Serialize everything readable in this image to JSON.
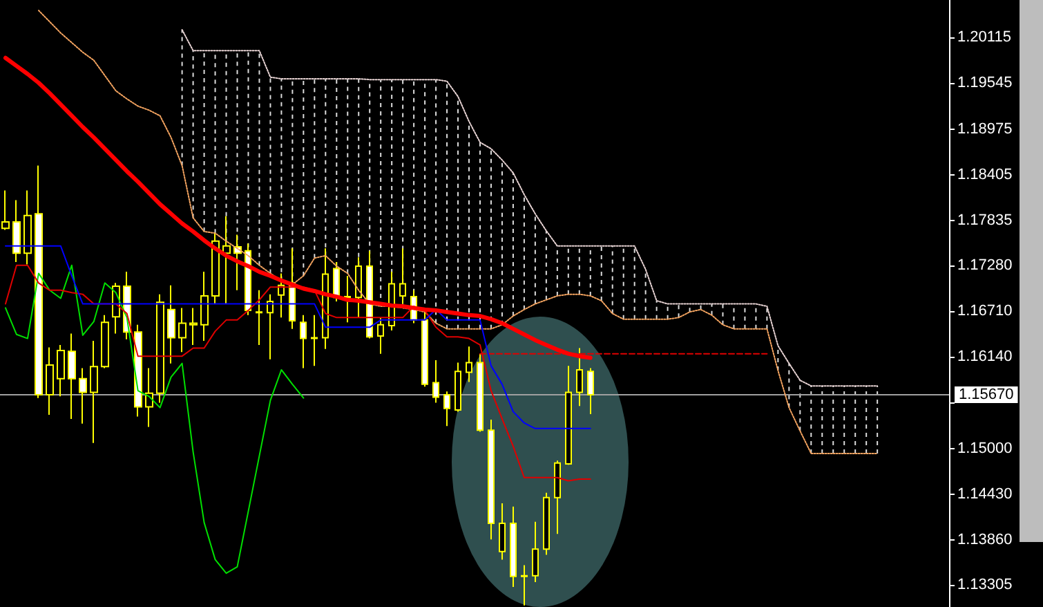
{
  "chart_data": {
    "type": "candlestick",
    "color": "#ffff00",
    "categories": [
      null,
      null,
      null,
      null,
      null,
      null,
      null,
      null,
      null,
      null,
      null,
      null,
      null,
      null,
      null,
      null,
      null,
      null,
      null,
      null,
      null,
      null,
      null,
      null,
      null,
      null,
      null,
      null,
      null,
      null,
      null,
      null,
      null,
      null,
      null,
      null,
      null,
      null,
      null,
      null,
      null,
      null,
      null,
      null,
      null,
      null,
      null,
      null,
      null,
      null,
      null,
      null,
      null,
      null,
      null,
      null,
      null,
      null,
      null,
      null,
      null,
      null,
      null,
      null,
      null,
      null,
      null,
      null,
      null,
      null,
      null,
      null,
      null,
      null,
      null,
      null,
      null,
      null,
      null,
      null,
      null,
      null,
      null,
      null,
      null,
      null
    ],
    "ohlc": [
      [
        1.1774,
        1.1821,
        1.1772,
        1.1782
      ],
      [
        1.1782,
        1.1809,
        1.1732,
        1.1743
      ],
      [
        1.1743,
        1.1821,
        1.1729,
        1.179
      ],
      [
        1.1792,
        1.1852,
        1.1563,
        1.1567
      ],
      [
        1.1567,
        1.1626,
        1.1542,
        1.1604
      ],
      [
        1.1587,
        1.1629,
        1.1565,
        1.1622
      ],
      [
        1.1621,
        1.1643,
        1.1537,
        1.1587
      ],
      [
        1.1587,
        1.16,
        1.1531,
        1.157
      ],
      [
        1.157,
        1.1634,
        1.1507,
        1.1602
      ],
      [
        1.1602,
        1.1666,
        1.16,
        1.1657
      ],
      [
        1.1664,
        1.1706,
        1.1643,
        1.1702
      ],
      [
        1.1702,
        1.172,
        1.1636,
        1.1645
      ],
      [
        1.1645,
        1.1654,
        1.154,
        1.1552
      ],
      [
        1.1552,
        1.16,
        1.1527,
        1.1569
      ],
      [
        1.1569,
        1.1692,
        1.1557,
        1.1682
      ],
      [
        1.1673,
        1.1703,
        1.1606,
        1.1638
      ],
      [
        1.1638,
        1.1675,
        1.162,
        1.1656
      ],
      [
        1.1654,
        1.1675,
        1.1629,
        1.1656
      ],
      [
        1.1654,
        1.172,
        1.1634,
        1.169
      ],
      [
        1.169,
        1.1769,
        1.168,
        1.1758
      ],
      [
        1.1743,
        1.1789,
        1.168,
        1.1752
      ],
      [
        1.1751,
        1.1766,
        1.1697,
        1.1743
      ],
      [
        1.1746,
        1.1755,
        1.1666,
        1.1672
      ],
      [
        1.167,
        1.1697,
        1.1629,
        1.1669
      ],
      [
        1.1669,
        1.1692,
        1.1611,
        1.1683
      ],
      [
        1.1691,
        1.1718,
        1.1663,
        1.1703
      ],
      [
        1.1706,
        1.1749,
        1.1649,
        1.1659
      ],
      [
        1.1657,
        1.1666,
        1.16,
        1.1637
      ],
      [
        1.1638,
        1.1666,
        1.1603,
        1.1637
      ],
      [
        1.1638,
        1.1749,
        1.1624,
        1.1717
      ],
      [
        1.1724,
        1.1732,
        1.1683,
        1.1688
      ],
      [
        1.1688,
        1.1715,
        1.1657,
        1.1689
      ],
      [
        1.1688,
        1.1738,
        1.1663,
        1.1727
      ],
      [
        1.1727,
        1.1746,
        1.1637,
        1.1639
      ],
      [
        1.164,
        1.1663,
        1.1618,
        1.1654
      ],
      [
        1.1653,
        1.172,
        1.1647,
        1.1705
      ],
      [
        1.169,
        1.1749,
        1.168,
        1.1705
      ],
      [
        1.1689,
        1.1697,
        1.1656,
        1.166
      ],
      [
        1.166,
        1.167,
        1.1577,
        1.158
      ],
      [
        1.1582,
        1.161,
        1.1557,
        1.1564
      ],
      [
        1.1567,
        1.1571,
        1.1528,
        1.155
      ],
      [
        1.1548,
        1.1607,
        1.1546,
        1.1596
      ],
      [
        1.1595,
        1.1627,
        1.1583,
        1.1607
      ],
      [
        1.1607,
        1.1618,
        1.1521,
        1.1523
      ],
      [
        1.1523,
        1.1536,
        1.1387,
        1.1407
      ],
      [
        1.1372,
        1.1432,
        1.1362,
        1.1407
      ],
      [
        1.1407,
        1.1428,
        1.1328,
        1.1341
      ],
      [
        1.1342,
        1.1355,
        1.1305,
        1.1341
      ],
      [
        1.1342,
        1.1409,
        1.1334,
        1.1375
      ],
      [
        1.1375,
        1.1445,
        1.1368,
        1.1439
      ],
      [
        1.1439,
        1.1485,
        1.1394,
        1.1482
      ],
      [
        1.1481,
        1.1603,
        1.148,
        1.157
      ],
      [
        1.157,
        1.1625,
        1.1553,
        1.1598
      ],
      [
        1.1596,
        1.16,
        1.1543,
        1.1567
      ],
      null,
      null,
      null,
      null,
      null,
      null,
      null,
      null,
      null,
      null,
      null,
      null,
      null,
      null,
      null,
      null,
      null,
      null,
      null,
      null,
      null,
      null,
      null,
      null,
      null,
      null,
      null,
      null,
      null,
      null,
      null,
      null
    ],
    "series": [
      {
        "type": "line",
        "color": "#ff0000",
        "values": [
          1.1986,
          1.1976,
          1.1966,
          1.1955,
          1.1942,
          1.1928,
          1.1914,
          1.19,
          1.1887,
          1.1873,
          1.1859,
          1.1845,
          1.1832,
          1.1818,
          1.1804,
          1.1792,
          1.178,
          1.177,
          1.1759,
          1.1749,
          1.174,
          1.1733,
          1.1727,
          1.172,
          1.1715,
          1.1709,
          1.1704,
          1.1699,
          1.1696,
          1.1692,
          1.1689,
          1.1685,
          1.1684,
          1.1682,
          1.168,
          1.1678,
          1.1677,
          1.1675,
          1.1673,
          1.1672,
          1.167,
          1.1668,
          1.1666,
          1.1665,
          1.1661,
          1.1656,
          1.1649,
          1.1642,
          1.1635,
          1.1629,
          1.1623,
          1.1618,
          1.1615,
          1.1613,
          null,
          null,
          null,
          null,
          null,
          null,
          null,
          null,
          null,
          null,
          null,
          null,
          null,
          null,
          null,
          null,
          null,
          null,
          null,
          null,
          null,
          null,
          null,
          null,
          null,
          null,
          null,
          null,
          null,
          null,
          null,
          null
        ]
      },
      {
        "type": "line",
        "color": "#0000ff",
        "values": [
          1.1752,
          1.1752,
          1.1752,
          1.1752,
          1.1752,
          1.1752,
          1.1715,
          1.168,
          1.168,
          1.168,
          1.168,
          1.168,
          1.168,
          1.168,
          1.168,
          1.168,
          1.168,
          1.168,
          1.168,
          1.168,
          1.168,
          1.168,
          1.168,
          1.168,
          1.168,
          1.168,
          1.168,
          1.168,
          1.168,
          1.1651,
          1.1651,
          1.1651,
          1.1651,
          1.1651,
          1.166,
          1.166,
          1.166,
          1.166,
          1.166,
          1.1673,
          1.166,
          1.166,
          1.166,
          1.166,
          1.1603,
          1.158,
          1.1546,
          1.1532,
          1.1525,
          1.1525,
          1.1525,
          1.1525,
          1.1525,
          1.1525,
          null,
          null,
          null,
          null,
          null,
          null,
          null,
          null,
          null,
          null,
          null,
          null,
          null,
          null,
          null,
          null,
          null,
          null,
          null,
          null,
          null,
          null,
          null,
          null,
          null,
          null,
          null,
          null,
          null,
          null,
          null,
          null
        ]
      },
      {
        "type": "line",
        "color": "#e00000",
        "values": [
          1.168,
          1.1728,
          1.1728,
          1.1706,
          1.1697,
          1.1697,
          1.1694,
          1.1692,
          1.168,
          1.168,
          1.168,
          1.1668,
          1.1615,
          1.1615,
          1.1615,
          1.1615,
          1.1615,
          1.1625,
          1.1625,
          1.1646,
          1.166,
          1.166,
          1.1672,
          1.1685,
          1.1701,
          1.1701,
          1.1701,
          1.1701,
          1.1697,
          1.1668,
          1.1663,
          1.1663,
          1.1663,
          1.1663,
          1.1663,
          1.1663,
          1.1663,
          1.1677,
          1.1672,
          1.1651,
          1.1639,
          1.1639,
          1.1637,
          1.1629,
          1.1572,
          1.1537,
          1.1503,
          1.1464,
          1.1464,
          1.1464,
          1.1464,
          1.146,
          1.1462,
          1.1462,
          null,
          null,
          null,
          null,
          null,
          null,
          null,
          null,
          null,
          null,
          null,
          null,
          null,
          null,
          null,
          null,
          null,
          null,
          null,
          null,
          null,
          null,
          null,
          null,
          null,
          null,
          null,
          null,
          null,
          null,
          null,
          null
        ]
      },
      {
        "type": "line",
        "color": "#00e000",
        "values": [
          1.1675,
          1.1642,
          1.1637,
          1.1718,
          1.1697,
          1.1687,
          1.1728,
          1.1641,
          1.1658,
          1.1706,
          1.1694,
          1.1663,
          1.1572,
          1.1565,
          1.1551,
          1.1589,
          1.1606,
          1.1496,
          1.1408,
          1.1362,
          1.1345,
          1.1353,
          1.1422,
          1.1491,
          1.156,
          1.1598,
          1.158,
          1.1563,
          null,
          null,
          null,
          null,
          null,
          null,
          null,
          null,
          null,
          null,
          null,
          null,
          null,
          null,
          null,
          null,
          null,
          null,
          null,
          null,
          null,
          null,
          null,
          null,
          null,
          null,
          null,
          null,
          null,
          null,
          null,
          null,
          null,
          null,
          null,
          null,
          null,
          null,
          null,
          null,
          null,
          null,
          null,
          null,
          null,
          null,
          null,
          null,
          null,
          null,
          null,
          null,
          null,
          null,
          null,
          null,
          null,
          null
        ]
      },
      {
        "type": "line",
        "color": "#f4a460",
        "line_style": "dotted",
        "values": [
          null,
          null,
          null,
          1.2045,
          1.2031,
          1.2017,
          1.2005,
          1.1993,
          1.1983,
          1.1964,
          1.1945,
          1.1935,
          1.1926,
          1.1921,
          1.1914,
          1.1887,
          1.1852,
          1.1787,
          1.177,
          1.1768,
          1.1758,
          1.1749,
          1.174,
          1.1728,
          1.1718,
          1.1709,
          1.1704,
          1.1715,
          1.1737,
          1.174,
          1.1727,
          1.1718,
          1.1697,
          1.168,
          1.1677,
          1.1677,
          1.1675,
          1.1673,
          1.167,
          1.1656,
          1.1649,
          1.1649,
          1.1649,
          1.1649,
          1.1649,
          1.1654,
          1.1665,
          1.1673,
          1.168,
          1.1685,
          1.169,
          1.1692,
          1.1692,
          1.169,
          1.1684,
          1.1668,
          1.1661,
          1.1661,
          1.1661,
          1.1661,
          1.1661,
          1.1663,
          1.167,
          1.1673,
          1.1666,
          1.1654,
          1.1649,
          1.1649,
          1.1649,
          1.1649,
          1.1597,
          1.1551,
          1.1522,
          1.1494,
          1.1494,
          1.1494,
          1.1494,
          1.1494,
          1.1494,
          1.1494,
          null,
          null,
          null,
          null,
          null,
          null
        ]
      },
      {
        "type": "line",
        "color": "#e8d4d4",
        "line_style": "dotted",
        "values": [
          null,
          null,
          null,
          null,
          null,
          null,
          null,
          null,
          null,
          null,
          null,
          null,
          null,
          null,
          null,
          null,
          1.2021,
          1.1995,
          1.1995,
          1.1995,
          1.1995,
          1.1995,
          1.1995,
          1.1995,
          1.1962,
          1.196,
          1.196,
          1.196,
          1.196,
          1.196,
          1.196,
          1.196,
          1.196,
          1.1959,
          1.1959,
          1.1959,
          1.1959,
          1.1959,
          1.1959,
          1.1959,
          1.1957,
          1.1938,
          1.1907,
          1.1881,
          1.1873,
          1.1859,
          1.1843,
          1.1816,
          1.1792,
          1.1771,
          1.1752,
          1.1752,
          1.1752,
          1.1752,
          1.1752,
          1.1752,
          1.1752,
          1.1752,
          1.1723,
          1.1684,
          1.168,
          1.168,
          1.168,
          1.168,
          1.168,
          1.168,
          1.168,
          1.168,
          1.168,
          1.1677,
          1.1628,
          1.1606,
          1.1585,
          1.1578,
          1.1578,
          1.1578,
          1.1578,
          1.1578,
          1.1578,
          1.1578,
          null,
          null,
          null,
          null,
          null,
          null
        ]
      },
      {
        "type": "line",
        "color": "#e00000",
        "line_style": "dashed",
        "values": [
          null,
          null,
          null,
          null,
          null,
          null,
          null,
          null,
          null,
          null,
          null,
          null,
          null,
          null,
          null,
          null,
          null,
          null,
          null,
          null,
          null,
          null,
          null,
          null,
          null,
          null,
          null,
          null,
          null,
          null,
          null,
          null,
          null,
          null,
          null,
          null,
          null,
          null,
          null,
          null,
          null,
          null,
          null,
          1.1618,
          1.1618,
          1.1618,
          1.1618,
          1.1618,
          1.1618,
          1.1618,
          1.1618,
          1.1618,
          1.1618,
          1.1618,
          1.1618,
          1.1618,
          1.1618,
          1.1618,
          1.1618,
          1.1618,
          1.1618,
          1.1618,
          1.1618,
          1.1618,
          1.1618,
          1.1618,
          1.1618,
          1.1618,
          1.1618,
          1.1618,
          null,
          null,
          null,
          null,
          null,
          null,
          null,
          null,
          null,
          null,
          null,
          null,
          null,
          null,
          null,
          null
        ]
      }
    ],
    "ref_lines": [
      {
        "axis": "y",
        "value": 1.1567,
        "label": "1.15670",
        "color": "#a0a0a0"
      }
    ],
    "ylim": [
      1.1303,
      1.2058
    ],
    "yticks": [
      1.20115,
      1.19545,
      1.18975,
      1.18405,
      1.17835,
      {
        "value": 1.1728,
        "label": "1.17280"
      },
      {
        "value": 1.1671,
        "label": "1.16710"
      },
      {
        "value": 1.1614,
        "label": "1.16140"
      },
      {
        "value": 1.1557,
        "label": null
      },
      {
        "value": 1.15,
        "label": "1.15000"
      },
      {
        "value": 1.1443,
        "label": "1.14430"
      },
      {
        "value": 1.1386,
        "label": "1.13860"
      },
      1.13305
    ],
    "tick_labels": "y",
    "grid": false
  }
}
